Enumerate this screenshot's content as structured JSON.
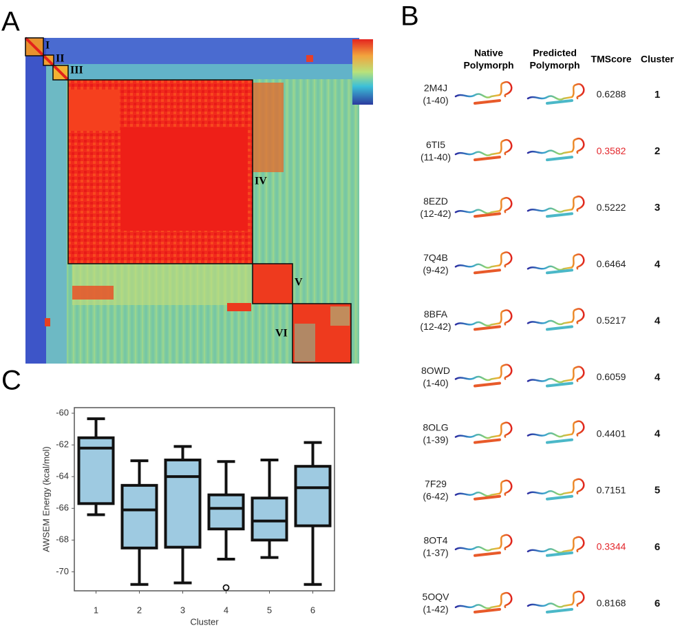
{
  "panels": {
    "a": "A",
    "b": "B",
    "c": "C"
  },
  "heatmap": {
    "clusters": [
      "I",
      "II",
      "III",
      "IV",
      "V",
      "VI"
    ]
  },
  "table": {
    "headers": [
      [
        "Native",
        "Polymorph"
      ],
      [
        "Predicted",
        "Polymorph"
      ],
      "TMScore",
      "Cluster"
    ],
    "rows": [
      {
        "id": "2M4J",
        "range": "(1-40)",
        "tmscore": "0.6288",
        "cluster": "1"
      },
      {
        "id": "6TI5",
        "range": "(11-40)",
        "tmscore": "0.3582",
        "cluster": "2",
        "color": "#e3262b"
      },
      {
        "id": "8EZD",
        "range": "(12-42)",
        "tmscore": "0.5222",
        "cluster": "3"
      },
      {
        "id": "7Q4B",
        "range": "(9-42)",
        "tmscore": "0.6464",
        "cluster": "4"
      },
      {
        "id": "8BFA",
        "range": "(12-42)",
        "tmscore": "0.5217",
        "cluster": "4"
      },
      {
        "id": "8OWD",
        "range": "(1-40)",
        "tmscore": "0.6059",
        "cluster": "4"
      },
      {
        "id": "8OLG",
        "range": "(1-39)",
        "tmscore": "0.4401",
        "cluster": "4"
      },
      {
        "id": "7F29",
        "range": "(6-42)",
        "tmscore": "0.7151",
        "cluster": "5"
      },
      {
        "id": "8OT4",
        "range": "(1-37)",
        "tmscore": "0.3344",
        "cluster": "6",
        "color": "#e3262b"
      },
      {
        "id": "5OQV",
        "range": "(1-42)",
        "tmscore": "0.8168",
        "cluster": "6"
      }
    ]
  },
  "chart_data": {
    "type": "box",
    "x_label": "Cluster",
    "y_label": "AWSEM Energy (kcal/mol)",
    "categories": [
      "1",
      "2",
      "3",
      "4",
      "5",
      "6"
    ],
    "color": "#9ecae1",
    "boxes": [
      {
        "whisker_low": -66.4,
        "q1": -65.7,
        "median": -62.2,
        "q3": -61.55,
        "whisker_high": -60.35,
        "outliers": []
      },
      {
        "whisker_low": -70.8,
        "q1": -68.5,
        "median": -66.1,
        "q3": -64.55,
        "whisker_high": -63.0,
        "outliers": []
      },
      {
        "whisker_low": -70.7,
        "q1": -68.45,
        "median": -64.0,
        "q3": -62.95,
        "whisker_high": -62.1,
        "outliers": []
      },
      {
        "whisker_low": -69.2,
        "q1": -67.3,
        "median": -66.0,
        "q3": -65.15,
        "whisker_high": -63.05,
        "outliers": [
          -71.0
        ]
      },
      {
        "whisker_low": -69.1,
        "q1": -68.0,
        "median": -66.8,
        "q3": -65.35,
        "whisker_high": -62.95,
        "outliers": []
      },
      {
        "whisker_low": -70.8,
        "q1": -67.1,
        "median": -64.7,
        "q3": -63.35,
        "whisker_high": -61.85,
        "outliers": []
      }
    ],
    "ylim": [
      -71.2,
      -59.65
    ],
    "yticks": [
      -70,
      -68,
      -66,
      -64,
      -62,
      -60
    ]
  }
}
